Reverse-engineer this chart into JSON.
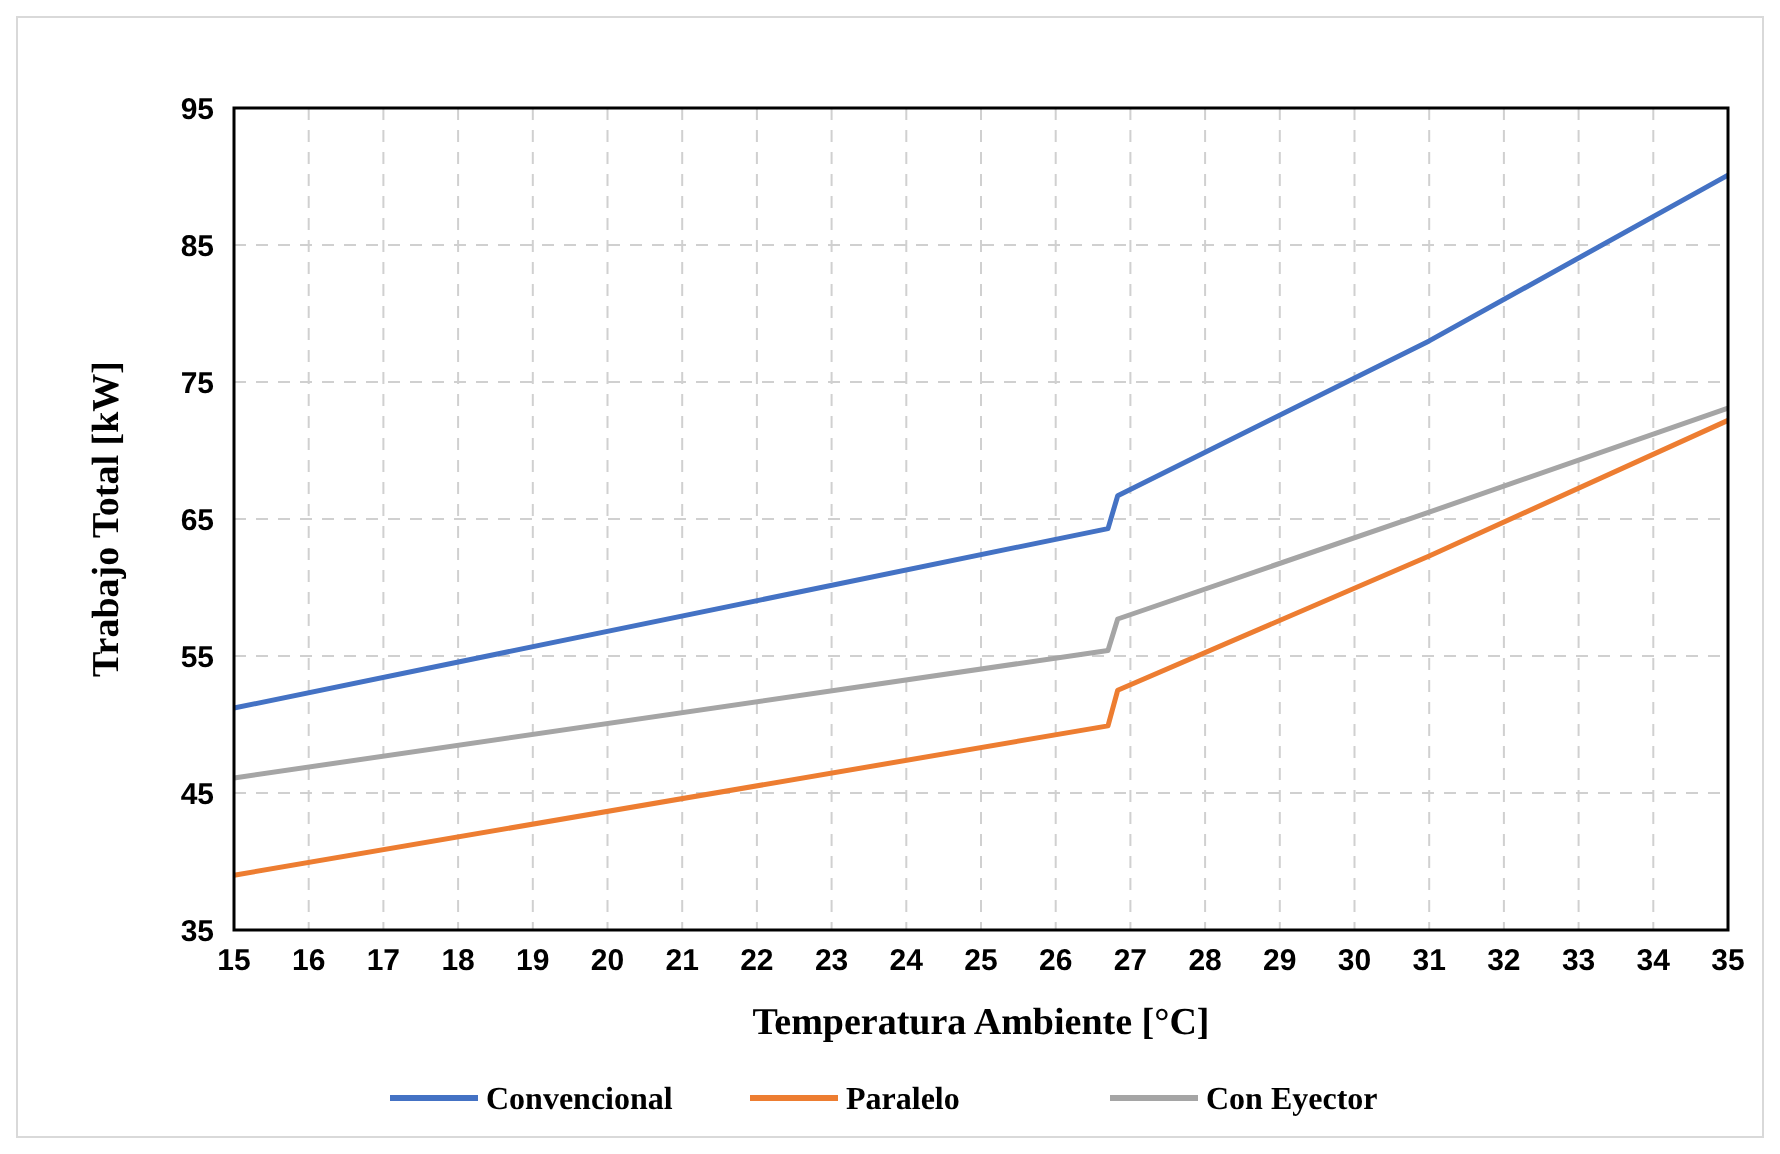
{
  "chart_data": {
    "type": "line",
    "xlabel": "Temperatura Ambiente [°C]",
    "ylabel": "Trabajo Total [kW]",
    "x": [
      15,
      26.7,
      26.83,
      31,
      35
    ],
    "series": [
      {
        "name": "Convencional",
        "color": "#4472c4",
        "values": [
          51.2,
          64.3,
          66.7,
          78.0,
          90.1
        ]
      },
      {
        "name": "Paralelo",
        "color": "#ed7d31",
        "values": [
          39.0,
          49.9,
          52.5,
          62.3,
          72.2
        ]
      },
      {
        "name": "Con Eyector",
        "color": "#a5a5a5",
        "values": [
          46.1,
          55.4,
          57.7,
          65.5,
          73.1
        ]
      }
    ],
    "xlim": [
      15,
      35
    ],
    "xticks": [
      15,
      16,
      17,
      18,
      19,
      20,
      21,
      22,
      23,
      24,
      25,
      26,
      27,
      28,
      29,
      30,
      31,
      32,
      33,
      34,
      35
    ],
    "ylim": [
      35,
      95
    ],
    "yticks": [
      35,
      45,
      55,
      65,
      75,
      85,
      95
    ],
    "grid": true,
    "legend": "bottom",
    "marker": "none",
    "line_style": "solid"
  }
}
